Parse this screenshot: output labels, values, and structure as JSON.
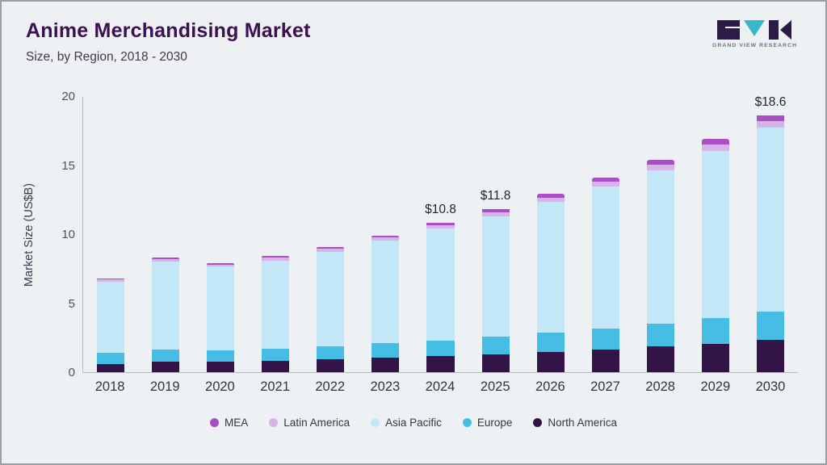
{
  "page": {
    "title": "Anime Merchandising Market",
    "subtitle": "Size, by Region, 2018 - 2030",
    "brand": "GRAND VIEW RESEARCH"
  },
  "chart_data": {
    "type": "bar",
    "stacked": true,
    "title": "Anime Merchandising Market",
    "subtitle": "Size, by Region, 2018 - 2030",
    "ylabel": "Market Size (US$B)",
    "xlabel": "",
    "ylim": [
      0,
      20
    ],
    "yticks": [
      0,
      5,
      10,
      15,
      20
    ],
    "grid": false,
    "legend_position": "bottom",
    "categories": [
      "2018",
      "2019",
      "2020",
      "2021",
      "2022",
      "2023",
      "2024",
      "2025",
      "2026",
      "2027",
      "2028",
      "2029",
      "2030"
    ],
    "series": [
      {
        "name": "North America",
        "color": "#331447",
        "values": [
          0.6,
          0.75,
          0.75,
          0.8,
          0.95,
          1.05,
          1.2,
          1.3,
          1.45,
          1.65,
          1.85,
          2.05,
          2.35
        ]
      },
      {
        "name": "Europe",
        "color": "#45bde5",
        "values": [
          0.8,
          0.9,
          0.85,
          0.9,
          0.95,
          1.05,
          1.1,
          1.3,
          1.4,
          1.5,
          1.65,
          1.85,
          2.05
        ]
      },
      {
        "name": "Asia Pacific",
        "color": "#c3e7f6",
        "values": [
          5.15,
          6.35,
          6.05,
          6.4,
          6.85,
          7.45,
          8.1,
          8.7,
          9.5,
          10.3,
          11.15,
          12.15,
          13.3
        ]
      },
      {
        "name": "Latin America",
        "color": "#d8b3e8",
        "values": [
          0.15,
          0.2,
          0.15,
          0.2,
          0.2,
          0.2,
          0.25,
          0.3,
          0.3,
          0.35,
          0.4,
          0.45,
          0.5
        ]
      },
      {
        "name": "MEA",
        "color": "#a94fc6",
        "values": [
          0.1,
          0.1,
          0.1,
          0.1,
          0.15,
          0.15,
          0.15,
          0.2,
          0.25,
          0.3,
          0.35,
          0.4,
          0.4
        ]
      }
    ],
    "total_labels": {
      "2024": "$10.8",
      "2025": "$11.8",
      "2030": "$18.6"
    },
    "legend_order": [
      "MEA",
      "Latin America",
      "Asia Pacific",
      "Europe",
      "North America"
    ]
  }
}
